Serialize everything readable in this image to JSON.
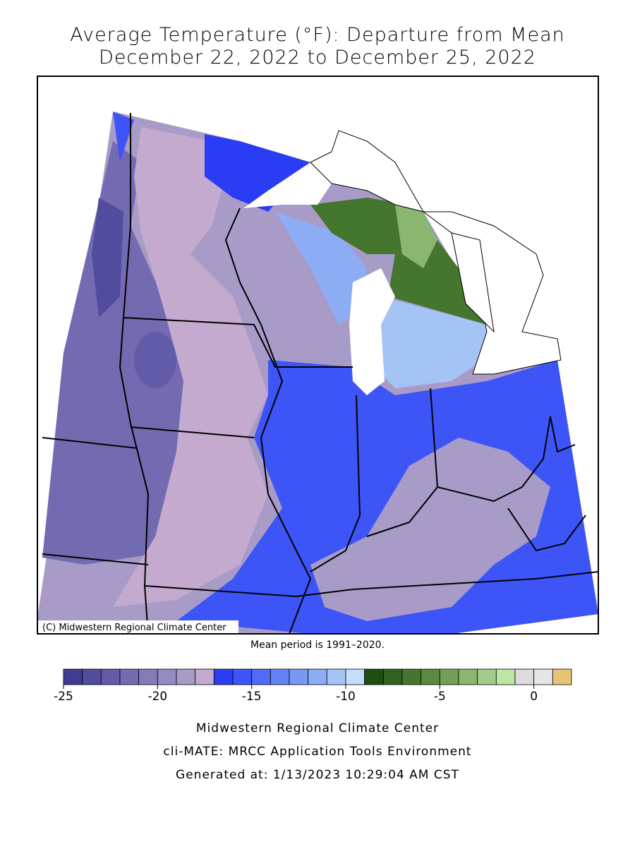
{
  "title": [
    "Average Temperature (°F): Departure from Mean",
    "December 22, 2022 to December 25, 2022"
  ],
  "map": {
    "credit": "(C) Midwestern Regional Climate Center",
    "note": "Mean period is 1991–2020."
  },
  "colorbar": {
    "lim": [
      -25,
      2
    ],
    "ticks": [
      -25,
      -20,
      -15,
      -10,
      -5,
      0
    ],
    "colors": [
      "#3f3d91",
      "#514c9e",
      "#625ba8",
      "#736bb1",
      "#847bb9",
      "#968bc1",
      "#a89bc8",
      "#c4aacf",
      "#2a3cf4",
      "#3d55f6",
      "#506cf6",
      "#6383f4",
      "#7798f3",
      "#8cadf4",
      "#a4c4f6",
      "#c2e0fb",
      "#1f4e12",
      "#2f621e",
      "#44762e",
      "#5a8a41",
      "#72a058",
      "#8ab670",
      "#a3cc8a",
      "#bde6a5",
      "#dcdcdc",
      "#e6e6e6",
      "#e8c373"
    ]
  },
  "footer": [
    "Midwestern Regional Climate Center",
    "cli-MATE: MRCC Application Tools Environment",
    "Generated at: 1/13/2023 10:29:04 AM CST"
  ]
}
